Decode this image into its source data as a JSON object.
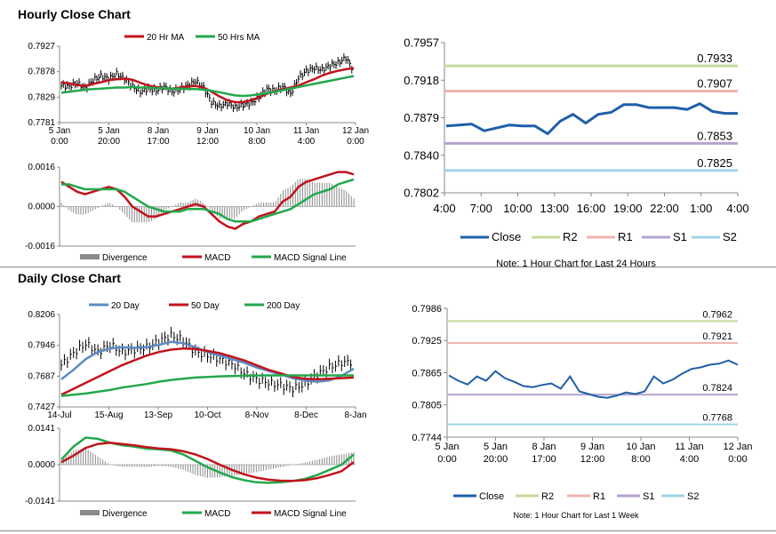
{
  "sections": {
    "hourly_title": "Hourly Close Chart",
    "daily_title": "Daily Close Chart"
  },
  "colors": {
    "close": "#1f5fa8",
    "r2": "#c5d99a",
    "r1": "#f0b4b0",
    "s1": "#b4a2cf",
    "s2": "#9fd4e8",
    "ma_red": "#c0141c",
    "ma_green": "#22a84c",
    "ma_blue": "#5b8ac4",
    "divergence": "#8a8a8a",
    "candle": "#000000"
  },
  "chart_data": [
    {
      "id": "hourly-price",
      "type": "line",
      "y_ticks": [
        "0.7927",
        "0.7878",
        "0.7829",
        "0.7781"
      ],
      "ylim": [
        0.7781,
        0.7927
      ],
      "x_labels": [
        [
          "5 Jan",
          "0:00"
        ],
        [
          "5 Jan",
          "20:00"
        ],
        [
          "8 Jan",
          "17:00"
        ],
        [
          "9 Jan",
          "12:00"
        ],
        [
          "10 Jan",
          "8:00"
        ],
        [
          "11 Jan",
          "4:00"
        ],
        [
          "12 Jan",
          "0:00"
        ]
      ],
      "legend": [
        "20 Hr MA",
        "50 Hrs MA"
      ],
      "series": [
        {
          "name": "20 Hr MA",
          "values": [
            0.7858,
            0.7856,
            0.7853,
            0.7851,
            0.7855,
            0.7858,
            0.7862,
            0.7864,
            0.7865,
            0.7863,
            0.7857,
            0.7852,
            0.7849,
            0.7847,
            0.7846,
            0.7848,
            0.785,
            0.7851,
            0.7848,
            0.784,
            0.7831,
            0.7824,
            0.782,
            0.782,
            0.7824,
            0.7829,
            0.7836,
            0.7841,
            0.7845,
            0.7848,
            0.7852,
            0.7858,
            0.7864,
            0.7871,
            0.7876,
            0.788,
            0.7883,
            0.7885
          ]
        },
        {
          "name": "50 Hrs MA",
          "values": [
            0.7838,
            0.784,
            0.7842,
            0.7844,
            0.7845,
            0.7846,
            0.7847,
            0.7848,
            0.7848,
            0.7849,
            0.7848,
            0.7848,
            0.7847,
            0.7847,
            0.7846,
            0.7846,
            0.7845,
            0.7845,
            0.7844,
            0.7842,
            0.7839,
            0.7836,
            0.7833,
            0.7832,
            0.7833,
            0.7835,
            0.7837,
            0.784,
            0.7843,
            0.7846,
            0.7849,
            0.7852,
            0.7855,
            0.7858,
            0.7861,
            0.7864,
            0.7867,
            0.787
          ]
        }
      ],
      "close": [
        0.7852,
        0.785,
        0.7857,
        0.7846,
        0.7862,
        0.787,
        0.7865,
        0.7874,
        0.7865,
        0.785,
        0.784,
        0.7846,
        0.7842,
        0.785,
        0.784,
        0.7845,
        0.7852,
        0.786,
        0.7848,
        0.782,
        0.7812,
        0.7818,
        0.781,
        0.7815,
        0.7818,
        0.783,
        0.7845,
        0.7842,
        0.785,
        0.7836,
        0.7866,
        0.788,
        0.7885,
        0.7882,
        0.789,
        0.7895,
        0.7905,
        0.788
      ]
    },
    {
      "id": "hourly-macd",
      "type": "line",
      "y_ticks": [
        "0.0016",
        "0.0000",
        "-0.0016"
      ],
      "ylim": [
        -0.0016,
        0.0016
      ],
      "legend": [
        "Divergence",
        "MACD",
        "MACD Signal Line"
      ],
      "series": [
        {
          "name": "MACD",
          "values": [
            0.001,
            0.0008,
            0.0006,
            0.0005,
            0.0006,
            0.0007,
            0.0008,
            0.0007,
            0.0004,
            0.0,
            -0.0002,
            -0.0004,
            -0.0004,
            -0.0003,
            -0.0002,
            -0.0001,
            0.0,
            0.0001,
            0.0,
            -0.0003,
            -0.0006,
            -0.0008,
            -0.0009,
            -0.0007,
            -0.0006,
            -0.0004,
            -0.0003,
            -0.0002,
            0.0002,
            0.0004,
            0.0008,
            0.001,
            0.0011,
            0.0012,
            0.0013,
            0.0014,
            0.0014,
            0.0013
          ]
        },
        {
          "name": "MACD Signal Line",
          "values": [
            0.0009,
            0.0009,
            0.0008,
            0.0007,
            0.0007,
            0.0007,
            0.0007,
            0.0007,
            0.0006,
            0.0004,
            0.0002,
            0.0,
            -0.0001,
            -0.0002,
            -0.0002,
            -0.0002,
            -0.0001,
            -0.0001,
            -0.0001,
            -0.0002,
            -0.0003,
            -0.0005,
            -0.0006,
            -0.0006,
            -0.0006,
            -0.0005,
            -0.0004,
            -0.0003,
            -0.0002,
            -0.0001,
            0.0001,
            0.0003,
            0.0005,
            0.0006,
            0.0007,
            0.0009,
            0.001,
            0.0011
          ]
        }
      ]
    },
    {
      "id": "hourly-pivot",
      "type": "line",
      "y_ticks": [
        "0.7957",
        "0.7918",
        "0.7879",
        "0.7840",
        "0.7802"
      ],
      "ylim": [
        0.7802,
        0.7957
      ],
      "x_labels": [
        "4:00",
        "7:00",
        "10:00",
        "13:00",
        "16:00",
        "19:00",
        "22:00",
        "1:00",
        "4:00"
      ],
      "levels": [
        {
          "name": "R2",
          "value": 0.7933,
          "label": "0.7933"
        },
        {
          "name": "R1",
          "value": 0.7907,
          "label": "0.7907"
        },
        {
          "name": "S1",
          "value": 0.7853,
          "label": "0.7853"
        },
        {
          "name": "S2",
          "value": 0.7825,
          "label": "0.7825"
        }
      ],
      "close": [
        0.7871,
        0.7872,
        0.7873,
        0.7866,
        0.7869,
        0.7872,
        0.7871,
        0.7871,
        0.7863,
        0.7876,
        0.7883,
        0.7874,
        0.7883,
        0.7885,
        0.7893,
        0.7893,
        0.789,
        0.789,
        0.789,
        0.7888,
        0.7894,
        0.7886,
        0.7884,
        0.7884
      ],
      "legend": [
        "Close",
        "R2",
        "R1",
        "S1",
        "S2"
      ],
      "note": "Note: 1 Hour Chart for Last 24 Hours"
    },
    {
      "id": "daily-price",
      "type": "line",
      "y_ticks": [
        "0.8206",
        "0.7946",
        "0.7687",
        "0.7427"
      ],
      "ylim": [
        0.7427,
        0.8206
      ],
      "x_labels": [
        "14-Jul",
        "15-Aug",
        "13-Sep",
        "10-Oct",
        "8-Nov",
        "8-Dec",
        "8-Jan"
      ],
      "legend": [
        "20 Day",
        "50 Day",
        "200 Day"
      ],
      "series": [
        {
          "name": "20 Day",
          "values": [
            0.766,
            0.774,
            0.783,
            0.789,
            0.792,
            0.793,
            0.7925,
            0.793,
            0.795,
            0.7975,
            0.7965,
            0.793,
            0.789,
            0.786,
            0.783,
            0.78,
            0.776,
            0.773,
            0.77,
            0.767,
            0.765,
            0.764,
            0.765,
            0.769,
            0.775
          ]
        },
        {
          "name": "50 Day",
          "values": [
            0.753,
            0.758,
            0.763,
            0.768,
            0.773,
            0.778,
            0.782,
            0.786,
            0.789,
            0.791,
            0.792,
            0.7915,
            0.79,
            0.788,
            0.785,
            0.782,
            0.778,
            0.774,
            0.771,
            0.768,
            0.7665,
            0.766,
            0.7665,
            0.767,
            0.7675
          ]
        },
        {
          "name": "200 Day",
          "values": [
            0.752,
            0.753,
            0.754,
            0.7555,
            0.757,
            0.759,
            0.7605,
            0.762,
            0.764,
            0.7655,
            0.7665,
            0.7675,
            0.768,
            0.7685,
            0.7688,
            0.769,
            0.7692,
            0.7693,
            0.7693,
            0.7693,
            0.7693,
            0.7693,
            0.7693,
            0.7693,
            0.7693
          ]
        }
      ],
      "close": [
        0.778,
        0.788,
        0.796,
        0.789,
        0.795,
        0.789,
        0.791,
        0.793,
        0.798,
        0.803,
        0.799,
        0.789,
        0.786,
        0.783,
        0.779,
        0.771,
        0.766,
        0.763,
        0.761,
        0.758,
        0.762,
        0.77,
        0.776,
        0.78,
        0.781
      ]
    },
    {
      "id": "daily-macd",
      "type": "line",
      "y_ticks": [
        "0.0141",
        "0.0000",
        "-0.0141"
      ],
      "ylim": [
        -0.0141,
        0.0141
      ],
      "legend": [
        "Divergence",
        "MACD",
        "MACD Signal Line"
      ],
      "series": [
        {
          "name": "MACD",
          "values": [
            0.002,
            0.007,
            0.0105,
            0.01,
            0.0085,
            0.0075,
            0.007,
            0.0062,
            0.006,
            0.0055,
            0.004,
            0.0015,
            -0.001,
            -0.003,
            -0.0048,
            -0.006,
            -0.0068,
            -0.007,
            -0.0068,
            -0.0063,
            -0.0055,
            -0.004,
            -0.002,
            0.0,
            0.004
          ]
        },
        {
          "name": "MACD Signal Line",
          "values": [
            0.001,
            0.0035,
            0.0065,
            0.008,
            0.0085,
            0.008,
            0.0075,
            0.0068,
            0.0063,
            0.006,
            0.0052,
            0.004,
            0.0022,
            0.0,
            -0.002,
            -0.0037,
            -0.005,
            -0.0058,
            -0.0062,
            -0.0063,
            -0.006,
            -0.0052,
            -0.004,
            -0.0025,
            0.001
          ]
        }
      ]
    },
    {
      "id": "weekly-pivot",
      "type": "line",
      "y_ticks": [
        "0.7986",
        "0.7925",
        "0.7865",
        "0.7805",
        "0.7744"
      ],
      "ylim": [
        0.7744,
        0.7986
      ],
      "x_labels": [
        [
          "5 Jan",
          "0:00"
        ],
        [
          "5 Jan",
          "20:00"
        ],
        [
          "8 Jan",
          "17:00"
        ],
        [
          "9 Jan",
          "12:00"
        ],
        [
          "10 Jan",
          "8:00"
        ],
        [
          "11 Jan",
          "4:00"
        ],
        [
          "12 Jan",
          "0:00"
        ]
      ],
      "levels": [
        {
          "name": "R2",
          "value": 0.7962,
          "label": "0.7962"
        },
        {
          "name": "R1",
          "value": 0.7921,
          "label": "0.7921"
        },
        {
          "name": "S1",
          "value": 0.7824,
          "label": "0.7824"
        },
        {
          "name": "S2",
          "value": 0.7768,
          "label": "0.7768"
        }
      ],
      "close": [
        0.786,
        0.785,
        0.7843,
        0.7858,
        0.785,
        0.7868,
        0.7855,
        0.7848,
        0.784,
        0.7838,
        0.7842,
        0.7845,
        0.7835,
        0.7858,
        0.783,
        0.7825,
        0.782,
        0.7818,
        0.7822,
        0.7828,
        0.7825,
        0.783,
        0.7858,
        0.7845,
        0.7852,
        0.7863,
        0.7872,
        0.7875,
        0.788,
        0.7882,
        0.7888,
        0.788
      ],
      "legend": [
        "Close",
        "R2",
        "R1",
        "S1",
        "S2"
      ],
      "note": "Note: 1 Hour Chart for Last 1 Week"
    }
  ]
}
